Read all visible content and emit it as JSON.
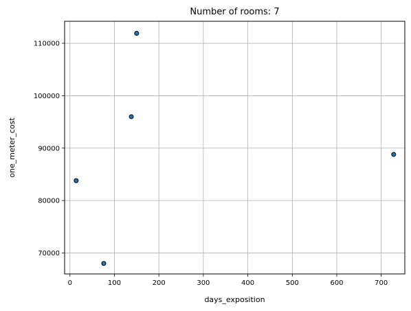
{
  "chart_data": {
    "type": "scatter",
    "title": "Number of rooms: 7",
    "xlabel": "days_exposition",
    "ylabel": "one_meter_cost",
    "xlim": [
      -12,
      753
    ],
    "ylim": [
      66000,
      114200
    ],
    "xticks": [
      0,
      100,
      200,
      300,
      400,
      500,
      600,
      700
    ],
    "yticks": [
      70000,
      80000,
      90000,
      100000,
      110000
    ],
    "grid": true,
    "marker_color": "#1f77b4",
    "marker_edge_color": "#000000",
    "points": [
      {
        "x": 14,
        "y": 83800
      },
      {
        "x": 76,
        "y": 68000
      },
      {
        "x": 138,
        "y": 96000
      },
      {
        "x": 150,
        "y": 111900
      },
      {
        "x": 728,
        "y": 88800
      }
    ]
  }
}
